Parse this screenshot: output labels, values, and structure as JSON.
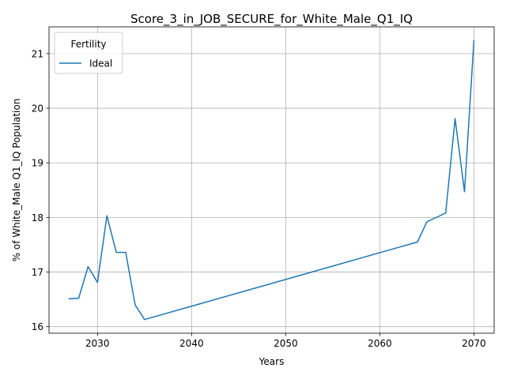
{
  "chart_data": {
    "type": "line",
    "title": "Score_3_in_JOB_SECURE_for_White_Male_Q1_IQ",
    "xlabel": "Years",
    "ylabel": "% of White_Male Q1_IQ Population",
    "xlim": [
      2024.85,
      2072.15
    ],
    "ylim": [
      15.88,
      21.49
    ],
    "xticks": [
      2030,
      2040,
      2050,
      2060,
      2070
    ],
    "yticks": [
      16,
      17,
      18,
      19,
      20,
      21
    ],
    "grid": true,
    "legend": {
      "title": "Fertility",
      "placement": "upper-left"
    },
    "series": [
      {
        "name": "Ideal",
        "color": "#1f77b4",
        "x": [
          2027,
          2028,
          2029,
          2030,
          2031,
          2032,
          2033,
          2034,
          2035,
          2064,
          2065,
          2066,
          2067,
          2068,
          2069,
          2070
        ],
        "y": [
          16.51,
          16.52,
          17.1,
          16.81,
          18.03,
          17.36,
          17.36,
          16.4,
          16.13,
          17.55,
          17.92,
          18.0,
          18.08,
          19.81,
          18.47,
          21.24
        ]
      }
    ]
  }
}
